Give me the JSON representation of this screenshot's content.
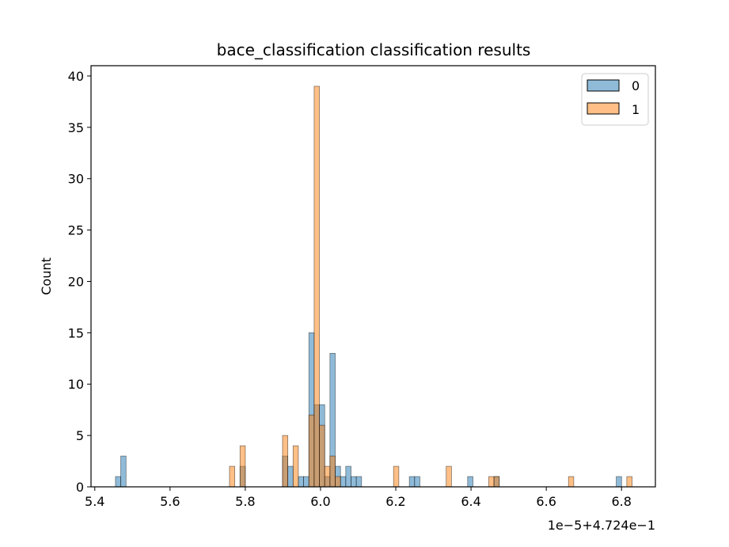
{
  "chart_data": {
    "type": "bar",
    "title": "bace_classification classification results",
    "xlabel": "",
    "ylabel": "Count",
    "x_offset_text": "1e−5+4.724e−1",
    "xlim": [
      5.39,
      6.89
    ],
    "ylim": [
      0,
      41
    ],
    "xticks": [
      5.4,
      5.6,
      5.8,
      6.0,
      6.2,
      6.4,
      6.6,
      6.8
    ],
    "xtick_labels": [
      "5.4",
      "5.6",
      "5.8",
      "6.0",
      "6.2",
      "6.4",
      "6.6",
      "6.8"
    ],
    "yticks": [
      0,
      5,
      10,
      15,
      20,
      25,
      30,
      35,
      40
    ],
    "ytick_labels": [
      "0",
      "5",
      "10",
      "15",
      "20",
      "25",
      "30",
      "35",
      "40"
    ],
    "bin_width": 0.0141,
    "grid": false,
    "legend_position": "top-right",
    "series": [
      {
        "name": "0",
        "color": "#1f77b4",
        "bins": [
          {
            "x": 5.455,
            "count": 1
          },
          {
            "x": 5.469,
            "count": 3
          },
          {
            "x": 5.786,
            "count": 2
          },
          {
            "x": 5.899,
            "count": 3
          },
          {
            "x": 5.913,
            "count": 2
          },
          {
            "x": 5.941,
            "count": 1
          },
          {
            "x": 5.955,
            "count": 1
          },
          {
            "x": 5.969,
            "count": 15
          },
          {
            "x": 5.983,
            "count": 8
          },
          {
            "x": 5.997,
            "count": 8
          },
          {
            "x": 6.011,
            "count": 1
          },
          {
            "x": 6.025,
            "count": 13
          },
          {
            "x": 6.039,
            "count": 2
          },
          {
            "x": 6.053,
            "count": 1
          },
          {
            "x": 6.067,
            "count": 2
          },
          {
            "x": 6.081,
            "count": 1
          },
          {
            "x": 6.095,
            "count": 1
          },
          {
            "x": 6.236,
            "count": 1
          },
          {
            "x": 6.25,
            "count": 1
          },
          {
            "x": 6.391,
            "count": 1
          },
          {
            "x": 6.461,
            "count": 1
          },
          {
            "x": 6.786,
            "count": 1
          }
        ]
      },
      {
        "name": "1",
        "color": "#ff7f0e",
        "bins": [
          {
            "x": 5.758,
            "count": 2
          },
          {
            "x": 5.786,
            "count": 4
          },
          {
            "x": 5.899,
            "count": 5
          },
          {
            "x": 5.927,
            "count": 4
          },
          {
            "x": 5.969,
            "count": 7
          },
          {
            "x": 5.983,
            "count": 39
          },
          {
            "x": 5.997,
            "count": 6
          },
          {
            "x": 6.011,
            "count": 2
          },
          {
            "x": 6.025,
            "count": 3
          },
          {
            "x": 6.039,
            "count": 1
          },
          {
            "x": 6.194,
            "count": 2
          },
          {
            "x": 6.334,
            "count": 2
          },
          {
            "x": 6.447,
            "count": 1
          },
          {
            "x": 6.461,
            "count": 1
          },
          {
            "x": 6.659,
            "count": 1
          },
          {
            "x": 6.814,
            "count": 1
          }
        ]
      }
    ]
  }
}
